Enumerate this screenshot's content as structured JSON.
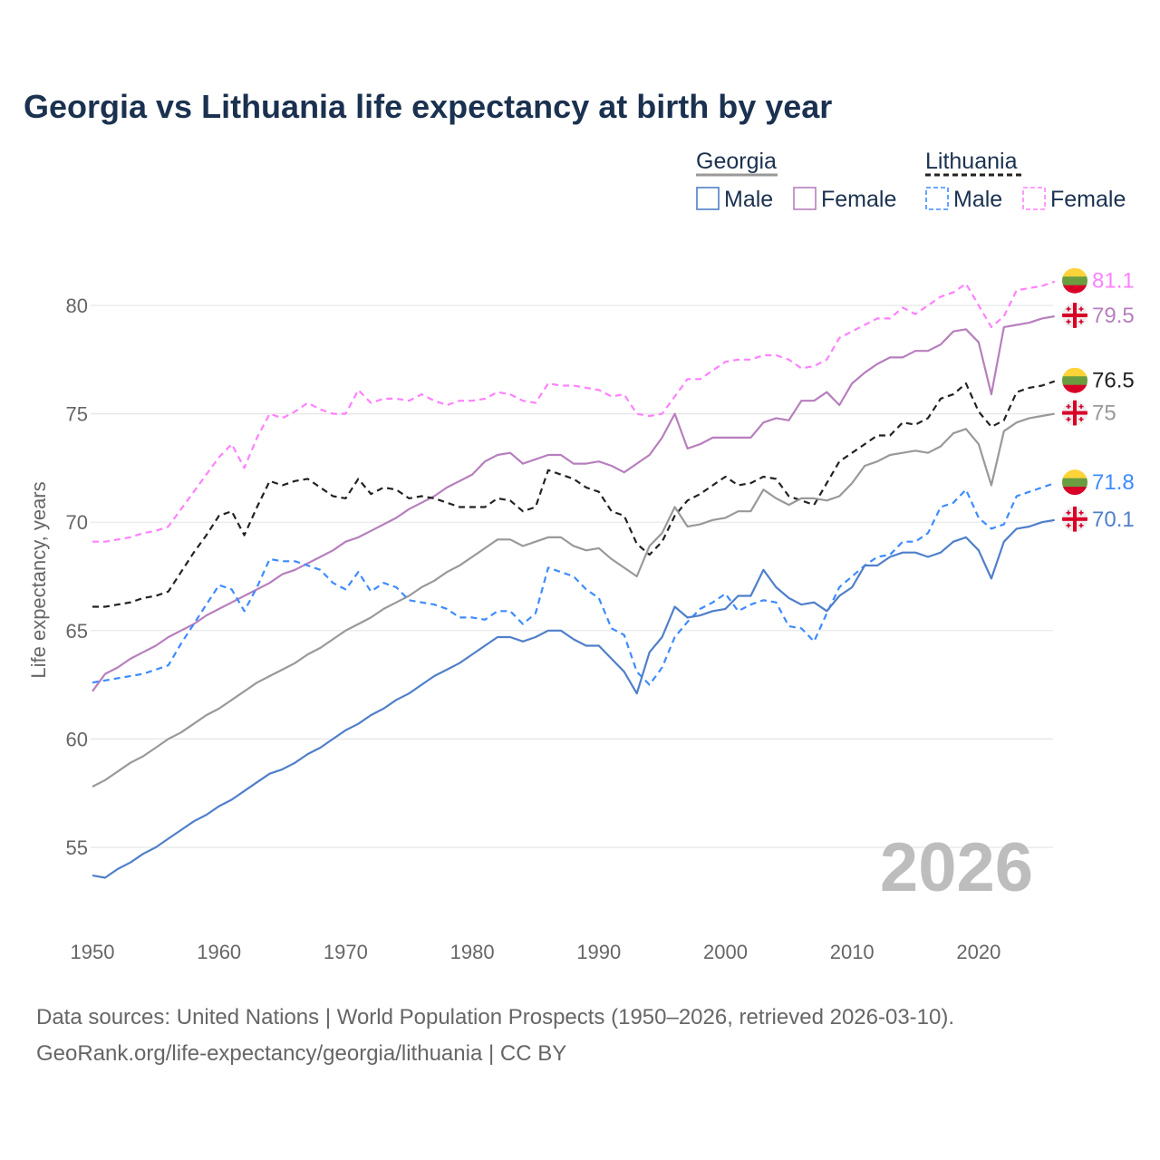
{
  "chart_data": {
    "type": "line",
    "title": "Georgia vs Lithuania life expectancy at birth by year",
    "xlabel": "",
    "ylabel": "Life expectancy, years",
    "xlim": [
      1950,
      2026
    ],
    "ylim": [
      52.5,
      82.5
    ],
    "x_ticks": [
      1950,
      1960,
      1970,
      1980,
      1990,
      2000,
      2010,
      2020
    ],
    "y_ticks": [
      55,
      60,
      65,
      70,
      75,
      80
    ],
    "grid": true,
    "watermark": "2026",
    "legend": {
      "placement": "top-right",
      "groups": [
        {
          "name": "Georgia",
          "items": [
            "Male",
            "Female"
          ]
        },
        {
          "name": "Lithuania",
          "items": [
            "Male",
            "Female"
          ]
        }
      ]
    },
    "x_start": 1950,
    "series": [
      {
        "id": "lt-female",
        "name": "Lithuania Female",
        "country": "Lithuania",
        "color": "#ff80ff",
        "dashed": true,
        "end_label": "81.1",
        "values": [
          69.1,
          69.1,
          69.2,
          69.3,
          69.5,
          69.6,
          69.8,
          70.6,
          71.4,
          72.2,
          73.0,
          73.6,
          72.5,
          73.9,
          75.0,
          74.8,
          75.1,
          75.5,
          75.2,
          75.0,
          75.0,
          76.1,
          75.5,
          75.7,
          75.7,
          75.6,
          75.9,
          75.6,
          75.4,
          75.6,
          75.6,
          75.7,
          76.0,
          75.9,
          75.6,
          75.5,
          76.4,
          76.3,
          76.3,
          76.2,
          76.1,
          75.8,
          75.9,
          75.0,
          74.9,
          75.0,
          75.8,
          76.6,
          76.6,
          77.0,
          77.4,
          77.5,
          77.5,
          77.7,
          77.7,
          77.5,
          77.1,
          77.2,
          77.5,
          78.5,
          78.8,
          79.1,
          79.4,
          79.4,
          79.9,
          79.6,
          80.0,
          80.4,
          80.6,
          81.0,
          80.0,
          79.0,
          79.5,
          80.7,
          80.8,
          80.9,
          81.1
        ]
      },
      {
        "id": "ge-female",
        "name": "Georgia Female",
        "country": "Georgia",
        "color": "#b77fbd",
        "dashed": false,
        "end_label": "79.5",
        "values": [
          62.2,
          63.0,
          63.3,
          63.7,
          64.0,
          64.3,
          64.7,
          65.0,
          65.3,
          65.7,
          66.0,
          66.3,
          66.6,
          66.9,
          67.2,
          67.6,
          67.8,
          68.1,
          68.4,
          68.7,
          69.1,
          69.3,
          69.6,
          69.9,
          70.2,
          70.6,
          70.9,
          71.2,
          71.6,
          71.9,
          72.2,
          72.8,
          73.1,
          73.2,
          72.7,
          72.9,
          73.1,
          73.1,
          72.7,
          72.7,
          72.8,
          72.6,
          72.3,
          72.7,
          73.1,
          73.9,
          75.0,
          73.4,
          73.6,
          73.9,
          73.9,
          73.9,
          73.9,
          74.6,
          74.8,
          74.7,
          75.6,
          75.6,
          76.0,
          75.4,
          76.4,
          76.9,
          77.3,
          77.6,
          77.6,
          77.9,
          77.9,
          78.2,
          78.8,
          78.9,
          78.3,
          75.9,
          79.0,
          79.1,
          79.2,
          79.4,
          79.5
        ]
      },
      {
        "id": "lt-total",
        "name": "Lithuania",
        "country": "Lithuania",
        "color": "#222222",
        "dashed": true,
        "end_label": "76.5",
        "values": [
          66.1,
          66.1,
          66.2,
          66.3,
          66.5,
          66.6,
          66.8,
          67.7,
          68.6,
          69.4,
          70.3,
          70.5,
          69.4,
          70.7,
          71.9,
          71.7,
          71.9,
          72.0,
          71.6,
          71.2,
          71.1,
          72.0,
          71.3,
          71.6,
          71.5,
          71.1,
          71.2,
          71.1,
          70.9,
          70.7,
          70.7,
          70.7,
          71.1,
          71.0,
          70.5,
          70.7,
          72.4,
          72.2,
          72.0,
          71.6,
          71.4,
          70.5,
          70.3,
          69.0,
          68.5,
          69.1,
          70.3,
          71.0,
          71.3,
          71.7,
          72.1,
          71.7,
          71.8,
          72.1,
          72.0,
          71.2,
          71.0,
          70.8,
          71.8,
          72.8,
          73.2,
          73.6,
          74.0,
          74.0,
          74.6,
          74.5,
          74.8,
          75.7,
          75.9,
          76.4,
          75.1,
          74.4,
          74.7,
          76.0,
          76.2,
          76.3,
          76.5
        ]
      },
      {
        "id": "ge-total",
        "name": "Georgia",
        "country": "Georgia",
        "color": "#999999",
        "dashed": false,
        "end_label": "75",
        "values": [
          57.8,
          58.1,
          58.5,
          58.9,
          59.2,
          59.6,
          60.0,
          60.3,
          60.7,
          61.1,
          61.4,
          61.8,
          62.2,
          62.6,
          62.9,
          63.2,
          63.5,
          63.9,
          64.2,
          64.6,
          65.0,
          65.3,
          65.6,
          66.0,
          66.3,
          66.6,
          67.0,
          67.3,
          67.7,
          68.0,
          68.4,
          68.8,
          69.2,
          69.2,
          68.9,
          69.1,
          69.3,
          69.3,
          68.9,
          68.7,
          68.8,
          68.3,
          67.9,
          67.5,
          68.9,
          69.5,
          70.7,
          69.8,
          69.9,
          70.1,
          70.2,
          70.5,
          70.5,
          71.5,
          71.1,
          70.8,
          71.1,
          71.1,
          71.0,
          71.2,
          71.8,
          72.6,
          72.8,
          73.1,
          73.2,
          73.3,
          73.2,
          73.5,
          74.1,
          74.3,
          73.6,
          71.7,
          74.2,
          74.6,
          74.8,
          74.9,
          75.0
        ]
      },
      {
        "id": "lt-male",
        "name": "Lithuania Male",
        "country": "Lithuania",
        "color": "#3d8bff",
        "dashed": true,
        "end_label": "71.8",
        "values": [
          62.6,
          62.7,
          62.8,
          62.9,
          63.0,
          63.2,
          63.4,
          64.4,
          65.3,
          66.2,
          67.1,
          66.9,
          65.9,
          67.0,
          68.3,
          68.2,
          68.2,
          68.0,
          67.8,
          67.2,
          66.9,
          67.7,
          66.8,
          67.2,
          67.0,
          66.4,
          66.3,
          66.2,
          66.0,
          65.6,
          65.6,
          65.5,
          65.9,
          65.9,
          65.3,
          65.8,
          67.9,
          67.7,
          67.5,
          66.9,
          66.5,
          65.1,
          64.8,
          63.1,
          62.5,
          63.3,
          64.7,
          65.4,
          66.0,
          66.3,
          66.7,
          65.9,
          66.2,
          66.4,
          66.3,
          65.2,
          65.1,
          64.5,
          65.8,
          67.0,
          67.5,
          68.0,
          68.4,
          68.5,
          69.1,
          69.1,
          69.5,
          70.7,
          70.9,
          71.5,
          70.2,
          69.7,
          69.9,
          71.2,
          71.4,
          71.6,
          71.8
        ]
      },
      {
        "id": "ge-male",
        "name": "Georgia Male",
        "country": "Georgia",
        "color": "#4f7fca",
        "dashed": false,
        "end_label": "70.1",
        "values": [
          53.7,
          53.6,
          54.0,
          54.3,
          54.7,
          55.0,
          55.4,
          55.8,
          56.2,
          56.5,
          56.9,
          57.2,
          57.6,
          58.0,
          58.4,
          58.6,
          58.9,
          59.3,
          59.6,
          60.0,
          60.4,
          60.7,
          61.1,
          61.4,
          61.8,
          62.1,
          62.5,
          62.9,
          63.2,
          63.5,
          63.9,
          64.3,
          64.7,
          64.7,
          64.5,
          64.7,
          65.0,
          65.0,
          64.6,
          64.3,
          64.3,
          63.7,
          63.1,
          62.1,
          64.0,
          64.7,
          66.1,
          65.6,
          65.7,
          65.9,
          66.0,
          66.6,
          66.6,
          67.8,
          67.0,
          66.5,
          66.2,
          66.3,
          65.9,
          66.6,
          67.0,
          68.0,
          68.0,
          68.4,
          68.6,
          68.6,
          68.4,
          68.6,
          69.1,
          69.3,
          68.7,
          67.4,
          69.1,
          69.7,
          69.8,
          70.0,
          70.1
        ]
      }
    ]
  },
  "footer": {
    "line1": "Data sources: United Nations | World Population Prospects (1950–2026, retrieved 2026-03-10).",
    "line2": "GeoRank.org/life-expectancy/georgia/lithuania | CC BY"
  }
}
